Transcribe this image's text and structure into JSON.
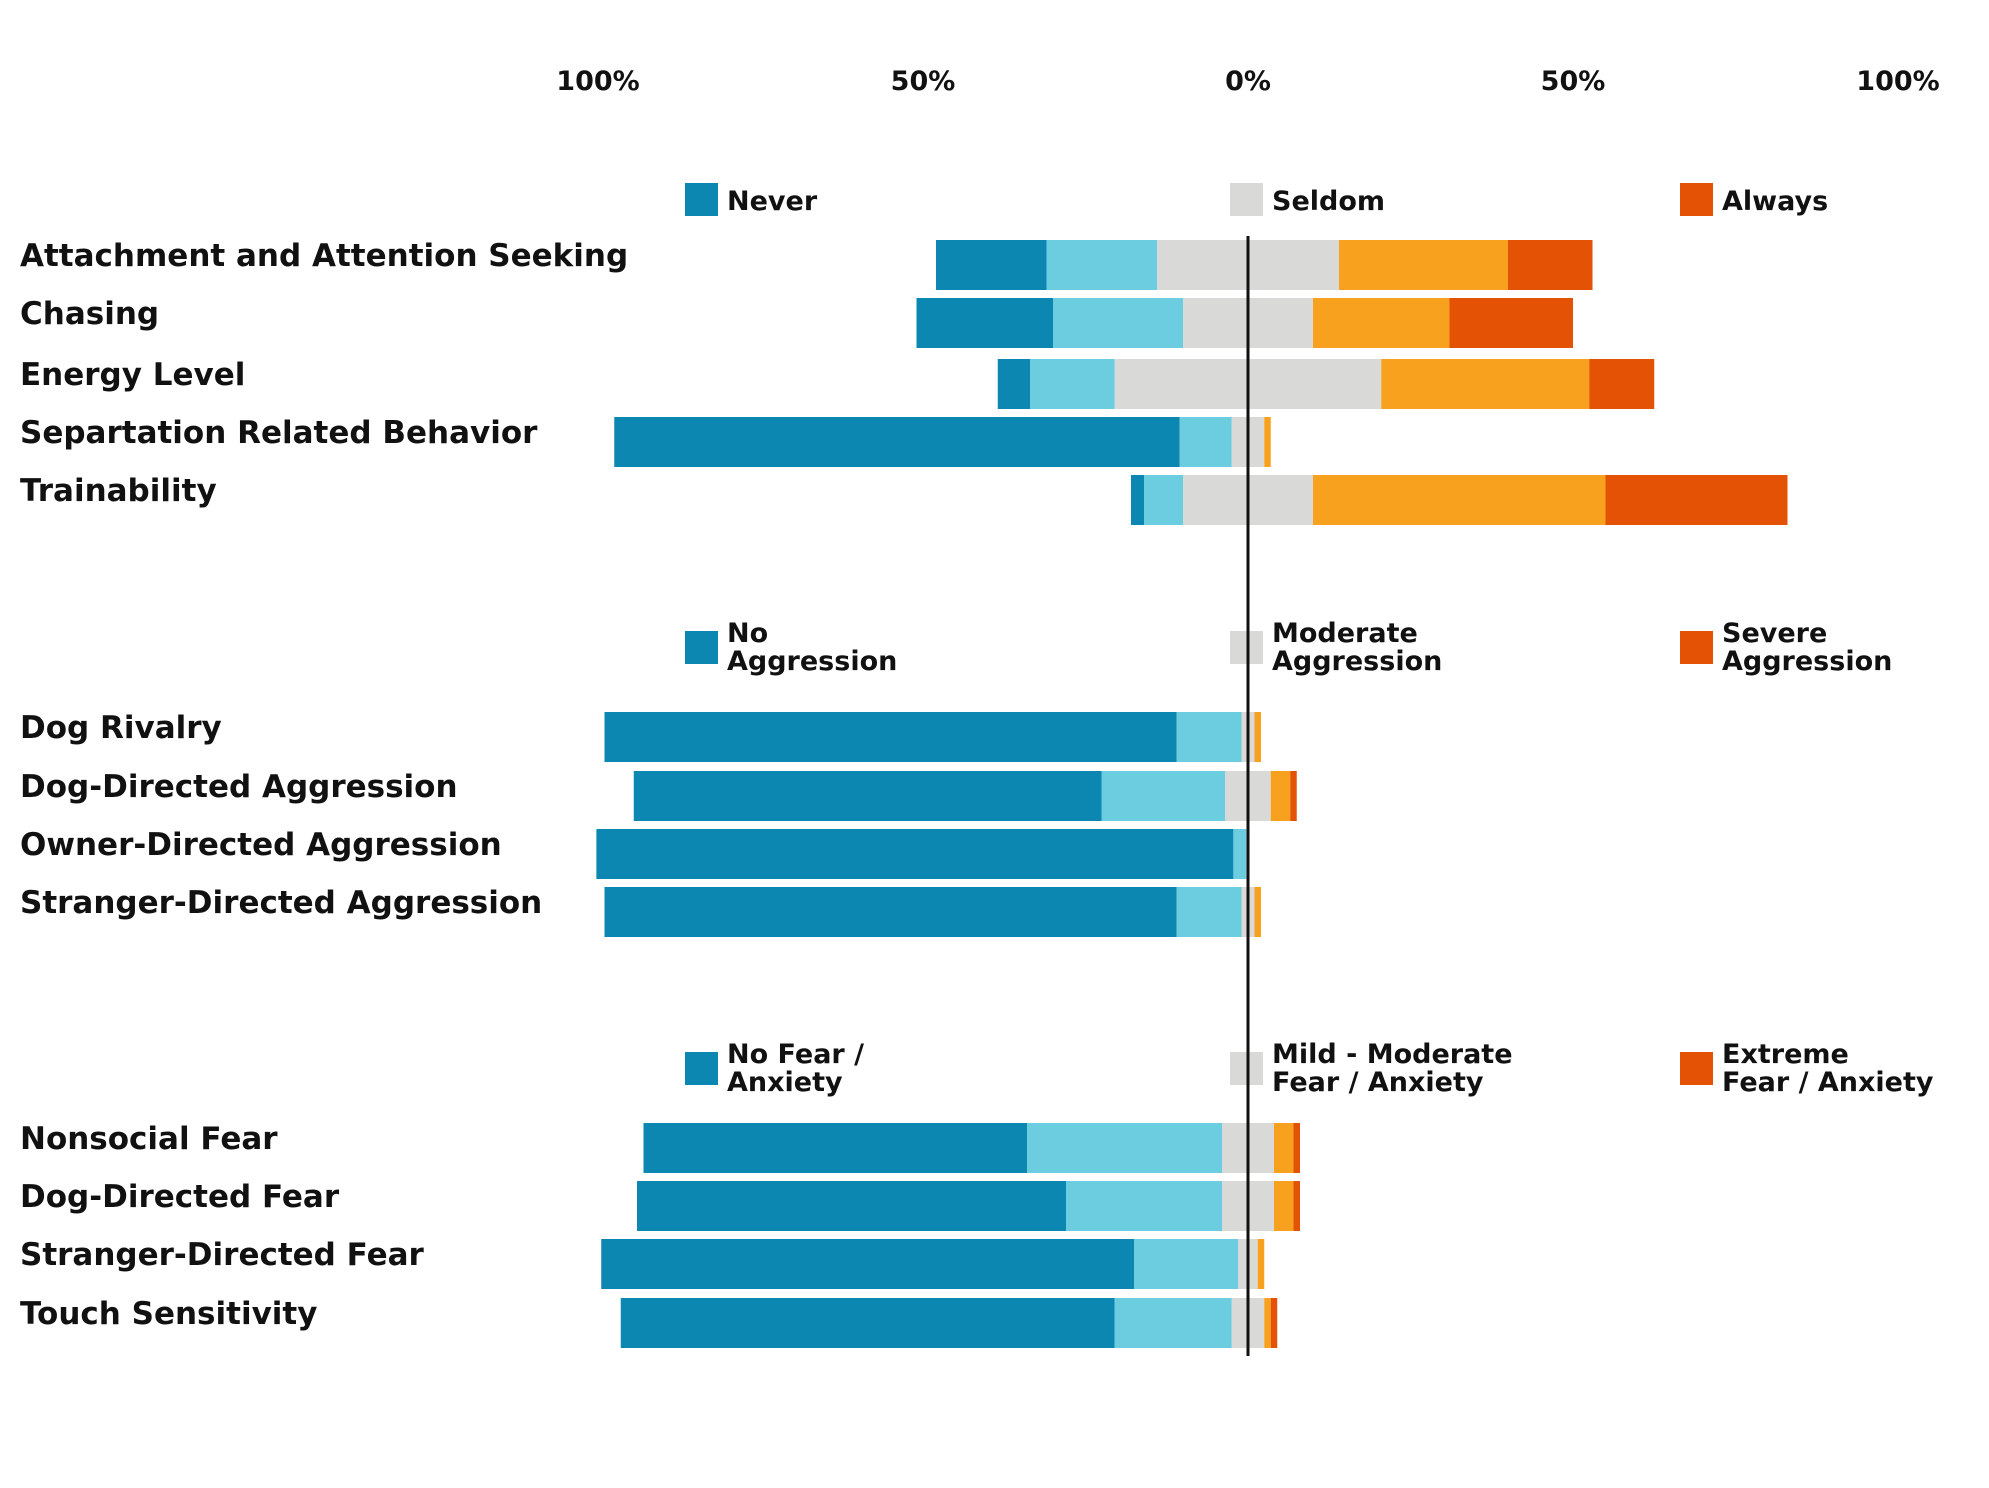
{
  "colors": {
    "strong_neg": "#0b87b1",
    "mild_neg": "#6ccde0",
    "neutral": "#d9d9d7",
    "mild_pos": "#f8a11f",
    "strong_pos": "#e35205",
    "axis": "#111111"
  },
  "chart_data": {
    "type": "bar",
    "orientation": "horizontal",
    "stacked": "diverging",
    "x_ticks": [
      "100%",
      "50%",
      "0%",
      "50%",
      "100%"
    ],
    "xlim": [
      -100,
      100
    ],
    "grid": false,
    "groups": [
      {
        "legend": {
          "left": "Never",
          "middle": "Seldom",
          "right": "Always"
        },
        "rows": [
          {
            "label": "Attachment and Attention Seeking",
            "values": [
              17,
              17,
              28,
              26,
              13
            ]
          },
          {
            "label": "Chasing",
            "values": [
              21,
              20,
              20,
              21,
              19
            ]
          },
          {
            "label": "Energy Level",
            "values": [
              5,
              13,
              41,
              32,
              10
            ]
          },
          {
            "label": "Separtation Related Behavior",
            "values": [
              87,
              8,
              5,
              1,
              0
            ]
          },
          {
            "label": "Trainability",
            "values": [
              2,
              6,
              20,
              45,
              28
            ]
          }
        ]
      },
      {
        "legend": {
          "left": "No\nAggression",
          "middle": "Moderate\nAggression",
          "right": "Severe\nAggression"
        },
        "rows": [
          {
            "label": "Dog Rivalry",
            "values": [
              88,
              10,
              2,
              1,
              0
            ]
          },
          {
            "label": "Dog-Directed Aggression",
            "values": [
              72,
              19,
              7,
              3,
              1
            ]
          },
          {
            "label": "Owner-Directed Aggression",
            "values": [
              98,
              2,
              0.5,
              0,
              0
            ]
          },
          {
            "label": "Stranger-Directed Aggression",
            "values": [
              88,
              10,
              2,
              1,
              0
            ]
          }
        ]
      },
      {
        "legend": {
          "left": "No Fear /\nAnxiety",
          "middle": "Mild - Moderate\nFear / Anxiety",
          "right": "Extreme\nFear / Anxiety"
        },
        "rows": [
          {
            "label": "Nonsocial Fear",
            "values": [
              59,
              30,
              8,
              3,
              1
            ]
          },
          {
            "label": "Dog-Directed Fear",
            "values": [
              66,
              24,
              8,
              3,
              1
            ]
          },
          {
            "label": "Stranger-Directed Fear",
            "values": [
              82,
              16,
              3,
              1,
              0
            ]
          },
          {
            "label": "Touch Sensitivity",
            "values": [
              76,
              18,
              5,
              1,
              1
            ]
          }
        ]
      }
    ]
  }
}
